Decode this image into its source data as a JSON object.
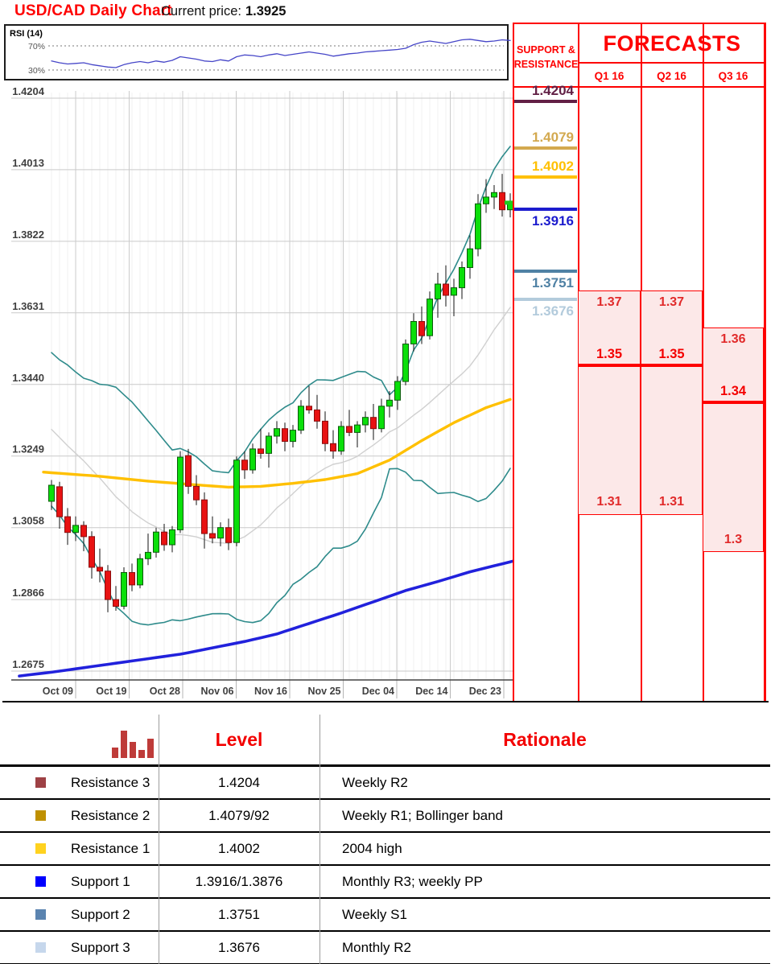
{
  "header": {
    "title": "USD/CAD Daily Chart",
    "current_price_label": "Current price:",
    "current_price": "1.3925"
  },
  "rsi": {
    "label": "RSI (14)",
    "upper_label": "70%",
    "lower_label": "30%",
    "values": [
      45,
      42,
      40,
      41,
      42,
      39,
      37,
      35,
      34,
      39,
      42,
      44,
      42,
      45,
      43,
      46,
      52,
      50,
      48,
      45,
      44,
      47,
      45,
      52,
      55,
      54,
      52,
      55,
      57,
      54,
      56,
      58,
      60,
      58,
      56,
      53,
      55,
      57,
      58,
      60,
      61,
      62,
      63,
      64,
      66,
      72,
      76,
      78,
      76,
      74,
      77,
      80,
      81,
      79,
      77,
      78,
      80,
      79
    ]
  },
  "chart_data": {
    "type": "candlestick",
    "title": "USD/CAD Daily Chart",
    "pair": "USD/CAD",
    "timeframe": "Daily",
    "grid": true,
    "x_tick_labels": [
      "Oct 09",
      "Oct 19",
      "Oct 28",
      "Nov 06",
      "Nov 16",
      "Nov 25",
      "Dec 04",
      "Dec 14",
      "Dec 23"
    ],
    "y_tick_labels": [
      "1.4204",
      "1.4013",
      "1.3822",
      "1.3631",
      "1.3440",
      "1.3249",
      "1.3058",
      "1.2866",
      "1.2675"
    ],
    "ylim": [
      1.2675,
      1.4204
    ],
    "candles": [
      [
        1.3128,
        1.3185,
        1.3105,
        1.3171
      ],
      [
        1.3167,
        1.318,
        1.3055,
        1.3087
      ],
      [
        1.3087,
        1.311,
        1.3012,
        1.3045
      ],
      [
        1.3045,
        1.3088,
        1.3022,
        1.3064
      ],
      [
        1.3064,
        1.3075,
        1.2995,
        1.3034
      ],
      [
        1.3034,
        1.3048,
        1.2922,
        1.2952
      ],
      [
        1.2952,
        1.3002,
        1.2912,
        1.2942
      ],
      [
        1.2942,
        1.2958,
        1.2832,
        1.2866
      ],
      [
        1.2866,
        1.2902,
        1.2836,
        1.2848
      ],
      [
        1.2848,
        1.2952,
        1.284,
        1.2938
      ],
      [
        1.2938,
        1.2962,
        1.2888,
        1.2905
      ],
      [
        1.2905,
        1.2988,
        1.2896,
        1.2975
      ],
      [
        1.2975,
        1.3042,
        1.2958,
        1.2992
      ],
      [
        1.2992,
        1.3058,
        1.2978,
        1.3046
      ],
      [
        1.3046,
        1.3068,
        1.2996,
        1.3012
      ],
      [
        1.3012,
        1.3062,
        1.2992,
        1.3052
      ],
      [
        1.3052,
        1.3262,
        1.3044,
        1.3246
      ],
      [
        1.325,
        1.3268,
        1.3148,
        1.3168
      ],
      [
        1.3168,
        1.3198,
        1.3118,
        1.3132
      ],
      [
        1.3132,
        1.3152,
        1.3002,
        1.3042
      ],
      [
        1.3042,
        1.3088,
        1.3016,
        1.303
      ],
      [
        1.303,
        1.3072,
        1.3008,
        1.3058
      ],
      [
        1.3058,
        1.3082,
        1.2998,
        1.3018
      ],
      [
        1.3018,
        1.3248,
        1.3008,
        1.3238
      ],
      [
        1.3238,
        1.3262,
        1.3188,
        1.3212
      ],
      [
        1.3212,
        1.3282,
        1.3202,
        1.3268
      ],
      [
        1.3268,
        1.3322,
        1.3242,
        1.3256
      ],
      [
        1.3256,
        1.3312,
        1.3218,
        1.3302
      ],
      [
        1.3302,
        1.3342,
        1.3282,
        1.3322
      ],
      [
        1.3322,
        1.3338,
        1.3262,
        1.3288
      ],
      [
        1.3288,
        1.3332,
        1.3272,
        1.3318
      ],
      [
        1.3318,
        1.3398,
        1.3308,
        1.3382
      ],
      [
        1.3382,
        1.3436,
        1.3362,
        1.3372
      ],
      [
        1.3372,
        1.3412,
        1.3322,
        1.3342
      ],
      [
        1.3342,
        1.3368,
        1.3262,
        1.3282
      ],
      [
        1.3282,
        1.3318,
        1.3242,
        1.3262
      ],
      [
        1.3262,
        1.3342,
        1.3252,
        1.3328
      ],
      [
        1.3328,
        1.3372,
        1.3302,
        1.3312
      ],
      [
        1.3312,
        1.3342,
        1.3272,
        1.3332
      ],
      [
        1.3332,
        1.3368,
        1.3312,
        1.3352
      ],
      [
        1.3352,
        1.3388,
        1.3292,
        1.3322
      ],
      [
        1.3322,
        1.3402,
        1.3312,
        1.3382
      ],
      [
        1.3382,
        1.3422,
        1.3352,
        1.3398
      ],
      [
        1.3398,
        1.3462,
        1.3372,
        1.3448
      ],
      [
        1.3448,
        1.356,
        1.3438,
        1.3548
      ],
      [
        1.3548,
        1.363,
        1.3528,
        1.3608
      ],
      [
        1.3608,
        1.3648,
        1.3548,
        1.357
      ],
      [
        1.357,
        1.3688,
        1.356,
        1.3668
      ],
      [
        1.3668,
        1.3738,
        1.3618,
        1.3708
      ],
      [
        1.3708,
        1.3758,
        1.3648,
        1.3678
      ],
      [
        1.3678,
        1.3722,
        1.3622,
        1.3698
      ],
      [
        1.3698,
        1.3768,
        1.3668,
        1.3752
      ],
      [
        1.3752,
        1.3838,
        1.3722,
        1.3802
      ],
      [
        1.3802,
        1.3948,
        1.3782,
        1.3922
      ],
      [
        1.3922,
        1.3988,
        1.3898,
        1.394
      ],
      [
        1.394,
        1.3972,
        1.3908,
        1.3952
      ],
      [
        1.3952,
        1.4002,
        1.3888,
        1.3906
      ],
      [
        1.3906,
        1.395,
        1.3886,
        1.3925
      ]
    ],
    "overlays": {
      "bollinger": {
        "period": 20,
        "stdev_mult": 2,
        "prehistory_closes": [
          1.352,
          1.349,
          1.3462,
          1.3438,
          1.3415,
          1.3392,
          1.337,
          1.3348,
          1.3328,
          1.331,
          1.3292,
          1.3276,
          1.3262,
          1.325,
          1.3238,
          1.3228,
          1.3218,
          1.3206,
          1.3188
        ]
      },
      "ma_yellow": [
        [
          -1,
          1.3206
        ],
        [
          6,
          1.3195
        ],
        [
          12,
          1.3182
        ],
        [
          18,
          1.3172
        ],
        [
          22,
          1.3166
        ],
        [
          26,
          1.3168
        ],
        [
          30,
          1.3176
        ],
        [
          34,
          1.3186
        ],
        [
          38,
          1.3202
        ],
        [
          42,
          1.3238
        ],
        [
          46,
          1.329
        ],
        [
          50,
          1.3338
        ],
        [
          54,
          1.3378
        ],
        [
          57,
          1.34
        ]
      ],
      "ma_blue": [
        [
          -4,
          1.2662
        ],
        [
          0,
          1.2672
        ],
        [
          8,
          1.2696
        ],
        [
          16,
          1.272
        ],
        [
          24,
          1.2754
        ],
        [
          28,
          1.2774
        ],
        [
          32,
          1.2802
        ],
        [
          36,
          1.283
        ],
        [
          40,
          1.286
        ],
        [
          44,
          1.289
        ],
        [
          48,
          1.2914
        ],
        [
          52,
          1.294
        ],
        [
          58,
          1.2972
        ]
      ]
    }
  },
  "support_resistance": {
    "header": "SUPPORT & RESISTANCE",
    "levels": [
      {
        "label": "1.4204",
        "price": 1.4204,
        "type": "resistance",
        "color": "#622045"
      },
      {
        "label": "1.4079",
        "price": 1.4079,
        "type": "resistance",
        "color": "#D3A94F"
      },
      {
        "label": "1.4002",
        "price": 1.4002,
        "type": "resistance",
        "color": "#FFC003"
      },
      {
        "label": "1.3916",
        "price": 1.3916,
        "type": "support",
        "color": "#1C1CCE"
      },
      {
        "label": "1.3751",
        "price": 1.3751,
        "type": "support",
        "color": "#4F81A4"
      },
      {
        "label": "1.3676",
        "price": 1.3676,
        "type": "support",
        "color": "#B3CBDC"
      }
    ]
  },
  "forecasts": {
    "title": "FORECASTS",
    "columns": [
      {
        "label": "Q1 16",
        "high": "1.37",
        "mid": "1.35",
        "low": "1.31"
      },
      {
        "label": "Q2 16",
        "high": "1.37",
        "mid": "1.35",
        "low": "1.31"
      },
      {
        "label": "Q3 16",
        "high": "1.36",
        "mid": "1.34",
        "low": "1.3"
      }
    ]
  },
  "levels_table": {
    "level_header": "Level",
    "rationale_header": "Rationale",
    "rows": [
      {
        "name": "Resistance 3",
        "swatch": "#9E4145",
        "level": "1.4204",
        "rationale": "Weekly R2"
      },
      {
        "name": "Resistance 2",
        "swatch": "#BF9000",
        "level": "1.4079/92",
        "rationale": "Weekly R1; Bollinger band"
      },
      {
        "name": "Resistance 1",
        "swatch": "#FFD21F",
        "level": "1.4002",
        "rationale": "2004 high"
      },
      {
        "name": "Support 1",
        "swatch": "#0000FF",
        "level": "1.3916/1.3876",
        "rationale": "Monthly R3; weekly PP"
      },
      {
        "name": "Support 2",
        "swatch": "#5B84B0",
        "level": "1.3751",
        "rationale": "Weekly S1"
      },
      {
        "name": "Support 3",
        "swatch": "#C6D7EC",
        "level": "1.3676",
        "rationale": "Monthly R2"
      }
    ]
  },
  "icons": {
    "levels_table_header": "bar-chart-icon"
  },
  "colors": {
    "accent_red": "#FE0000",
    "candle_up": "#0ADF0A",
    "candle_down": "#E81212",
    "bollinger_band": "#2E8B8B",
    "bollinger_mid": "#D0D0D0",
    "ma_yellow": "#FFC000",
    "ma_blue": "#2121DC",
    "rsi_line": "#4646C8",
    "forecast_fill": "#FCE8E8",
    "current_price_marker": "#1ECB1E"
  }
}
